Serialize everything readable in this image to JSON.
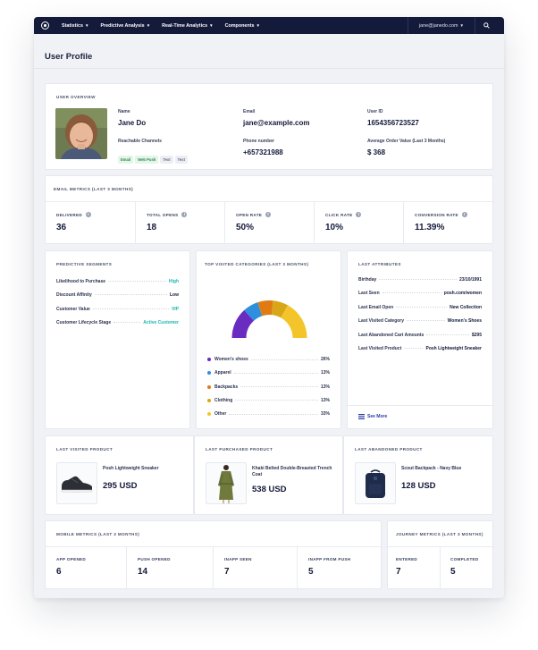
{
  "nav": {
    "items": [
      {
        "label": "Statistics"
      },
      {
        "label": "Predictive Analysis"
      },
      {
        "label": "Real-Time Analytics"
      },
      {
        "label": "Components"
      }
    ],
    "user_email": "jane@janedo.com"
  },
  "page": {
    "title": "User Profile"
  },
  "overview": {
    "title": "USER OVERVIEW",
    "name_label": "Name",
    "name": "Jane Do",
    "email_label": "Email",
    "email": "jane@example.com",
    "userid_label": "User ID",
    "userid": "1654356723527",
    "channels_label": "Reachable Channels",
    "channels": [
      "Email",
      "Web Push",
      "Text",
      "Text"
    ],
    "phone_label": "Phone number",
    "phone": "+657321988",
    "aov_label": "Average Order Value (Last 3 Months)",
    "aov": "$ 368"
  },
  "email_metrics": {
    "title": "EMAIL METRICS (LAST 3 MONTHS)",
    "cells": [
      {
        "label": "DELIVERED",
        "value": "36"
      },
      {
        "label": "TOTAL OPENS",
        "value": "18"
      },
      {
        "label": "OPEN RATE",
        "value": "50%"
      },
      {
        "label": "CLICK RATE",
        "value": "10%"
      },
      {
        "label": "CONVERSION RATE",
        "value": "11.39%"
      }
    ]
  },
  "predictive": {
    "title": "PREDICTIVE SEGMENTS",
    "rows": [
      {
        "key": "Likelihood to Purchase",
        "value": "High"
      },
      {
        "key": "Discount Affinity",
        "value": "Low"
      },
      {
        "key": "Customer Value",
        "value": "VIP"
      },
      {
        "key": "Customer Lifecycle Stage",
        "value": "Active Customer"
      }
    ]
  },
  "categories": {
    "title": "TOP VISITED CATEGORIES (LAST 3 MONTHS)",
    "colors": [
      "#6a2bc0",
      "#2d8fdd",
      "#e07b14",
      "#d8a617",
      "#f4c52a"
    ],
    "items": [
      {
        "name": "Women's shoes",
        "value": "26%",
        "color": "#6a2bc0"
      },
      {
        "name": "Apparel",
        "value": "13%",
        "color": "#2d8fdd"
      },
      {
        "name": "Backpacks",
        "value": "13%",
        "color": "#e07b14"
      },
      {
        "name": "Clothing",
        "value": "13%",
        "color": "#d8a617"
      },
      {
        "name": "Other",
        "value": "33%",
        "color": "#f4c52a"
      }
    ]
  },
  "attributes": {
    "title": "LAST ATTRIBUTES",
    "rows": [
      {
        "key": "Birthday",
        "value": "23/10/1991"
      },
      {
        "key": "Last Seen",
        "value": "posh.com/women"
      },
      {
        "key": "Last Email Open",
        "value": "New Collection"
      },
      {
        "key": "Last Visited Category",
        "value": "Women's Shoes"
      },
      {
        "key": "Last Abandoned Cart Amounts",
        "value": "$295"
      },
      {
        "key": "Last Visited Product",
        "value": "Posh Lightweight Sneaker"
      }
    ],
    "see_more": "See More"
  },
  "products": [
    {
      "title": "LAST VISITED PRODUCT",
      "name": "Posh Lightweight Sneaker",
      "price": "295 USD",
      "icon": "sneaker-icon"
    },
    {
      "title": "LAST PURCHASED PRODUCT",
      "name": "Khaki Belted Double-Breasted Trench Coat",
      "price": "538 USD",
      "icon": "trench-coat-icon"
    },
    {
      "title": "LAST ABANDONED PRODUCT",
      "name": "Scout Backpack - Navy Blue",
      "price": "128 USD",
      "icon": "backpack-icon"
    }
  ],
  "mobile_metrics": {
    "title": "MOBILE METRICS (LAST 3 MONTHS)",
    "cells": [
      {
        "label": "APP OPENED",
        "value": "6"
      },
      {
        "label": "PUSH OPENED",
        "value": "14"
      },
      {
        "label": "INAPP SEEN",
        "value": "7"
      },
      {
        "label": "INAPP FROM PUSH",
        "value": "5"
      }
    ]
  },
  "journey_metrics": {
    "title": "JOURNEY METRICS (LAST 3 MONTHS)",
    "cells": [
      {
        "label": "ENTERED",
        "value": "7"
      },
      {
        "label": "COMPLETED",
        "value": "5"
      }
    ]
  }
}
